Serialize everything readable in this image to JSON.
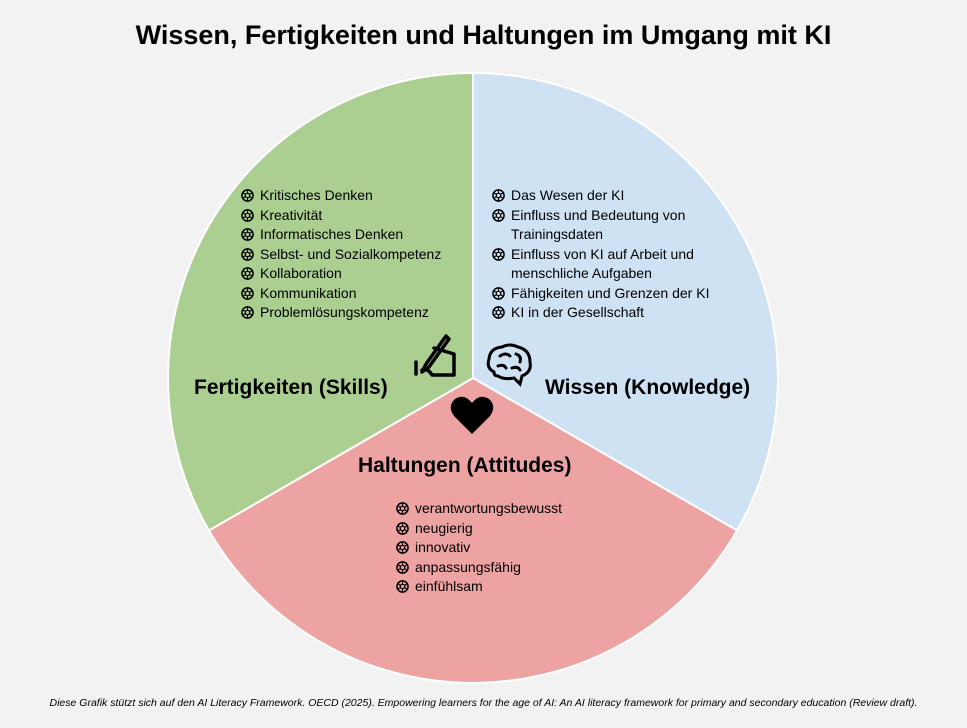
{
  "title": "Wissen, Fertigkeiten und Haltungen im Umgang mit KI",
  "colors": {
    "knowledge": "#cfe2f3",
    "attitudes": "#eea3a3",
    "skills": "#abce91",
    "background": "#f2f2f2"
  },
  "sections": {
    "knowledge": {
      "label": "Wissen (Knowledge)",
      "icon": "brain-icon",
      "items": [
        "Das Wesen der KI",
        "Einfluss und Bedeutung von Trainingsdaten",
        "Einfluss von KI auf Arbeit und menschliche Aufgaben",
        "Fähigkeiten und Grenzen der KI",
        "KI in der Gesellschaft"
      ]
    },
    "skills": {
      "label": "Fertigkeiten (Skills)",
      "icon": "hand-writing-icon",
      "items": [
        "Kritisches Denken",
        "Kreativität",
        "Informatisches Denken",
        "Selbst- und Sozialkompetenz",
        "Kollaboration",
        "Kommunikation",
        "Problemlösungskompetenz"
      ]
    },
    "attitudes": {
      "label": "Haltungen (Attitudes)",
      "icon": "heart-icon",
      "items": [
        "verantwortungsbewusst",
        "neugierig",
        "innovativ",
        "anpassungsfähig",
        "einfühlsam"
      ]
    }
  },
  "footer": "Diese Grafik stützt sich auf den AI Literacy Framework. OECD (2025). Empowering learners for the age of AI: An AI literacy framework for primary and secondary education (Review draft)."
}
